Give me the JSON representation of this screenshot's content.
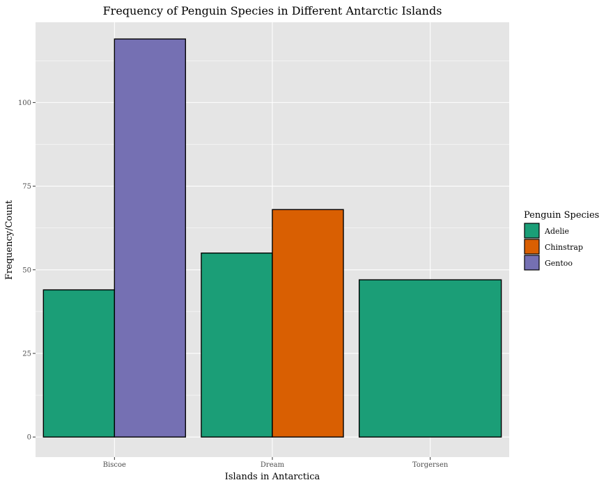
{
  "chart_data": {
    "type": "bar",
    "title": "Frequency of Penguin Species in Different Antarctic Islands",
    "xlabel": "Islands in Antarctica",
    "ylabel": "Frequency/Count",
    "categories": [
      "Biscoe",
      "Dream",
      "Torgersen"
    ],
    "ylim": [
      -6,
      124
    ],
    "yticks": [
      0,
      25,
      50,
      75,
      100
    ],
    "grid": true,
    "position": "dodge",
    "legend": {
      "title": "Penguin Species",
      "placement": "right",
      "entries": [
        "Adelie",
        "Chinstrap",
        "Gentoo"
      ]
    },
    "colors": {
      "Adelie": "#1b9e77",
      "Chinstrap": "#d95f02",
      "Gentoo": "#7570b3",
      "panel": "#e5e5e5",
      "grid": "#ffffff"
    },
    "bars": [
      {
        "category": "Biscoe",
        "species": "Adelie",
        "value": 44
      },
      {
        "category": "Biscoe",
        "species": "Gentoo",
        "value": 119
      },
      {
        "category": "Dream",
        "species": "Adelie",
        "value": 55
      },
      {
        "category": "Dream",
        "species": "Chinstrap",
        "value": 68
      },
      {
        "category": "Torgersen",
        "species": "Adelie",
        "value": 47
      }
    ]
  }
}
